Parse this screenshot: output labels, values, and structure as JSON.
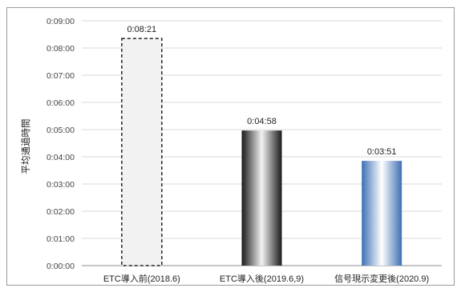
{
  "chart_data": {
    "type": "bar",
    "ylabel": "平均通過時間",
    "y_ticks": [
      "0:00:00",
      "0:01:00",
      "0:02:00",
      "0:03:00",
      "0:04:00",
      "0:05:00",
      "0:06:00",
      "0:07:00",
      "0:08:00",
      "0:09:00"
    ],
    "ylim_seconds": [
      0,
      540
    ],
    "grid": true,
    "categories": [
      "ETC導入前(2018.6)",
      "ETC導入後(2019.6,9)",
      "信号現示変更後(2020.9)"
    ],
    "values_seconds": [
      501,
      298,
      231
    ],
    "data_labels": [
      "0:08:21",
      "0:04:58",
      "0:03:51"
    ],
    "bar_styles": [
      "dashed-light-gray",
      "black-gradient",
      "blue-gradient"
    ]
  }
}
